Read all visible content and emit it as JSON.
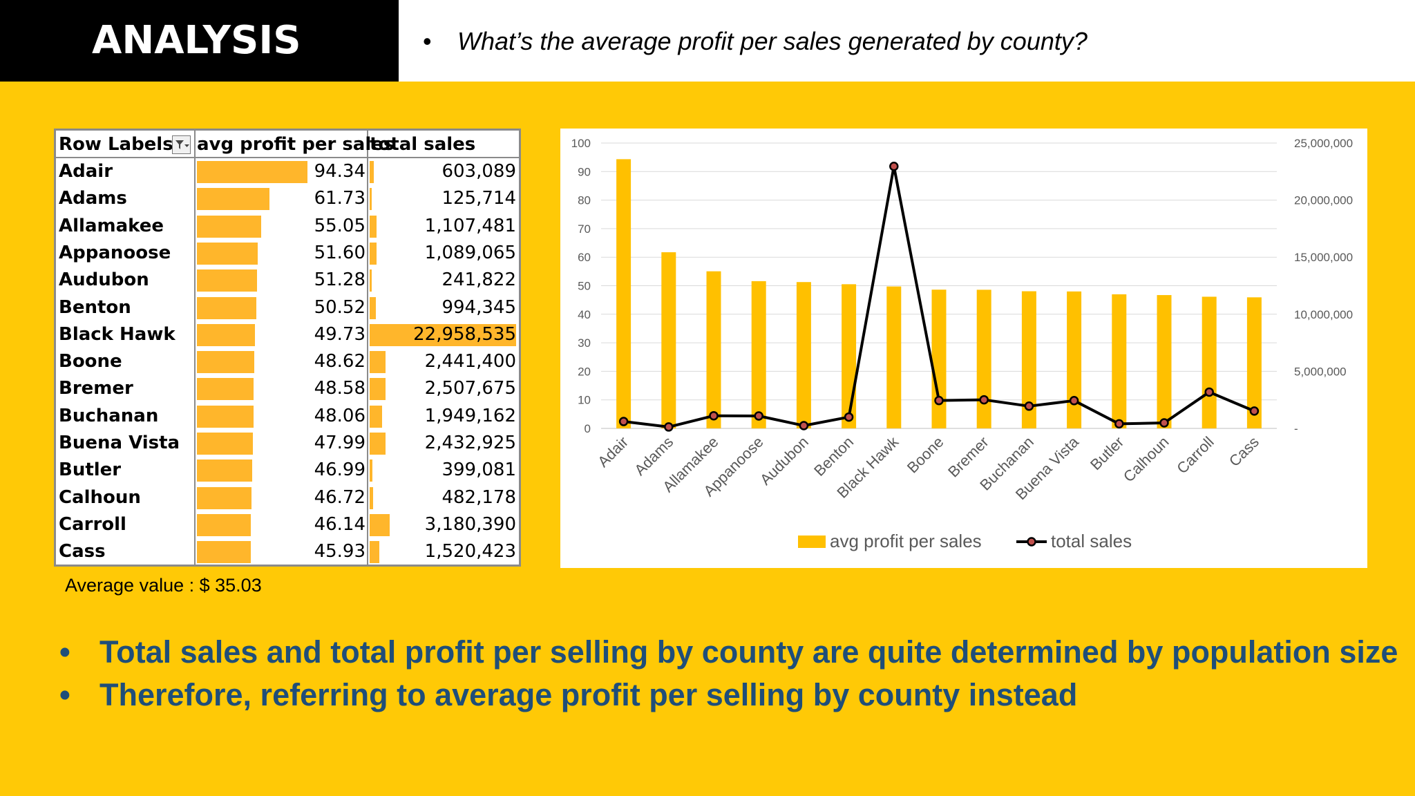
{
  "slide": {
    "title": "ANALYSIS",
    "question_bullet": "•",
    "question": "What’s the average profit per sales generated by county?",
    "average_note": "Average value : $ 35.03",
    "bullet_char": "•",
    "bullets": [
      "Total sales and total profit per selling by county are quite determined by population size",
      "Therefore, referring to average profit per selling by county instead"
    ]
  },
  "table": {
    "headers": [
      "Row Labels",
      "avg profit per sales",
      "total sales"
    ],
    "rows": [
      {
        "label": "Adair",
        "avg": "94.34",
        "total": "603,089"
      },
      {
        "label": "Adams",
        "avg": "61.73",
        "total": "125,714"
      },
      {
        "label": "Allamakee",
        "avg": "55.05",
        "total": "1,107,481"
      },
      {
        "label": "Appanoose",
        "avg": "51.60",
        "total": "1,089,065"
      },
      {
        "label": "Audubon",
        "avg": "51.28",
        "total": "241,822"
      },
      {
        "label": "Benton",
        "avg": "50.52",
        "total": "994,345"
      },
      {
        "label": "Black Hawk",
        "avg": "49.73",
        "total": "22,958,535"
      },
      {
        "label": "Boone",
        "avg": "48.62",
        "total": "2,441,400"
      },
      {
        "label": "Bremer",
        "avg": "48.58",
        "total": "2,507,675"
      },
      {
        "label": "Buchanan",
        "avg": "48.06",
        "total": "1,949,162"
      },
      {
        "label": "Buena Vista",
        "avg": "47.99",
        "total": "2,432,925"
      },
      {
        "label": "Butler",
        "avg": "46.99",
        "total": "399,081"
      },
      {
        "label": "Calhoun",
        "avg": "46.72",
        "total": "482,178"
      },
      {
        "label": "Carroll",
        "avg": "46.14",
        "total": "3,180,390"
      },
      {
        "label": "Cass",
        "avg": "45.93",
        "total": "1,520,423"
      }
    ]
  },
  "chart_data": {
    "type": "bar",
    "title": "",
    "categories": [
      "Adair",
      "Adams",
      "Allamakee",
      "Appanoose",
      "Audubon",
      "Benton",
      "Black Hawk",
      "Boone",
      "Bremer",
      "Buchanan",
      "Buena Vista",
      "Butler",
      "Calhoun",
      "Carroll",
      "Cass"
    ],
    "series": [
      {
        "name": "avg profit per sales",
        "type": "bar",
        "axis": "left",
        "color": "#FFC000",
        "values": [
          94.34,
          61.73,
          55.05,
          51.6,
          51.28,
          50.52,
          49.73,
          48.62,
          48.58,
          48.06,
          47.99,
          46.99,
          46.72,
          46.14,
          45.93
        ]
      },
      {
        "name": "total sales",
        "type": "line",
        "axis": "right",
        "color": "#000000",
        "marker_color": "#C0504D",
        "values": [
          603089,
          125714,
          1107481,
          1089065,
          241822,
          994345,
          22958535,
          2441400,
          2507675,
          1949162,
          2432925,
          399081,
          482178,
          3180390,
          1520423
        ]
      }
    ],
    "y_left": {
      "min": 0,
      "max": 100,
      "ticks": [
        0,
        10,
        20,
        30,
        40,
        50,
        60,
        70,
        80,
        90,
        100
      ]
    },
    "y_right": {
      "min": 0,
      "max": 25000000,
      "ticks": [
        "-",
        "5,000,000",
        "10,000,000",
        "15,000,000",
        "20,000,000",
        "25,000,000"
      ]
    },
    "grid": true,
    "legend": "bottom"
  }
}
